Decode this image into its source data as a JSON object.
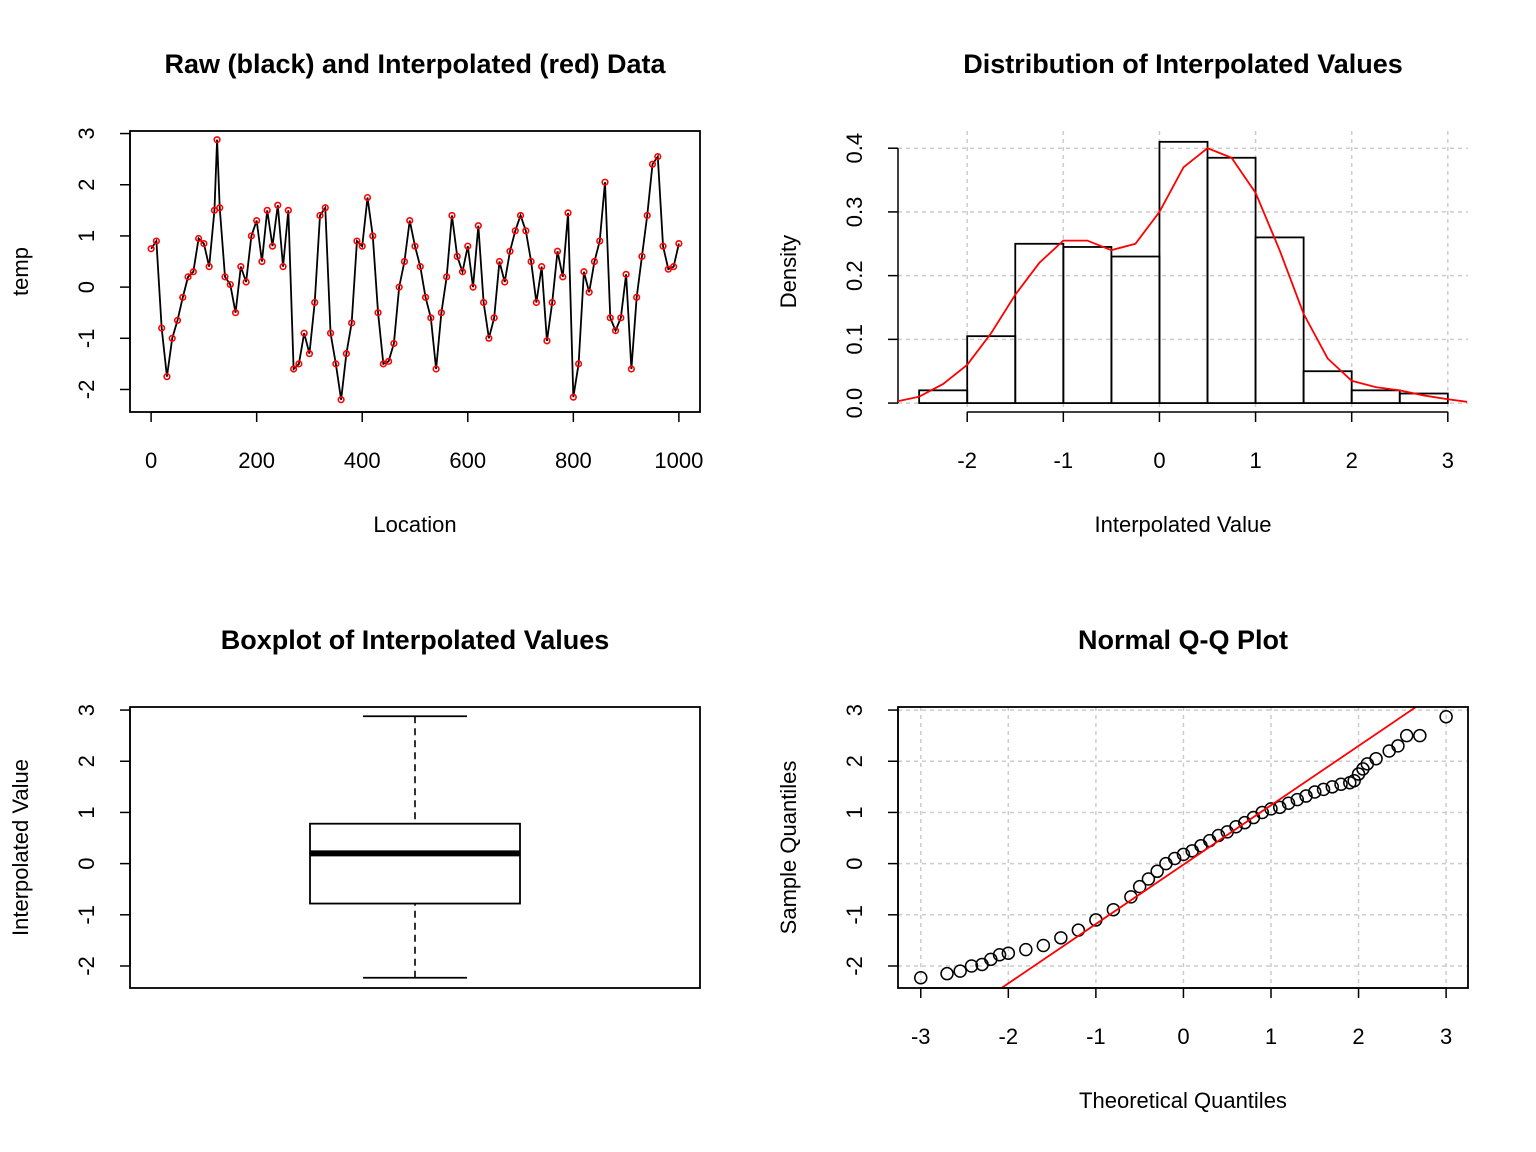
{
  "chart_data": [
    {
      "type": "line",
      "title": "Raw (black) and Interpolated (red) Data",
      "xlabel": "Location",
      "ylabel": "temp",
      "x": [
        0,
        10,
        20,
        30,
        40,
        50,
        60,
        70,
        80,
        90,
        100,
        110,
        120,
        125,
        130,
        140,
        150,
        160,
        170,
        180,
        190,
        200,
        210,
        220,
        230,
        240,
        250,
        260,
        270,
        280,
        290,
        300,
        310,
        320,
        330,
        340,
        350,
        360,
        370,
        380,
        390,
        400,
        410,
        420,
        430,
        440,
        450,
        460,
        470,
        480,
        490,
        500,
        510,
        520,
        530,
        540,
        550,
        560,
        570,
        580,
        590,
        600,
        610,
        620,
        630,
        640,
        650,
        660,
        670,
        680,
        690,
        700,
        710,
        720,
        730,
        740,
        750,
        760,
        770,
        780,
        790,
        800,
        810,
        820,
        830,
        840,
        850,
        860,
        870,
        880,
        890,
        900,
        910,
        920,
        930,
        940,
        950,
        960,
        970,
        980,
        990,
        1000
      ],
      "values": [
        0.75,
        0.9,
        -0.8,
        -1.75,
        -1.0,
        -0.65,
        -0.2,
        0.2,
        0.3,
        0.95,
        0.85,
        0.4,
        1.5,
        2.88,
        1.55,
        0.2,
        0.05,
        -0.5,
        0.4,
        0.1,
        1.0,
        1.3,
        0.5,
        1.5,
        0.8,
        1.6,
        0.4,
        1.5,
        -1.6,
        -1.5,
        -0.9,
        -1.3,
        -0.3,
        1.4,
        1.55,
        -0.9,
        -1.5,
        -2.2,
        -1.3,
        -0.7,
        0.9,
        0.8,
        1.75,
        1.0,
        -0.5,
        -1.5,
        -1.45,
        -1.1,
        0.0,
        0.5,
        1.3,
        0.8,
        0.4,
        -0.2,
        -0.6,
        -1.6,
        -0.5,
        0.2,
        1.4,
        0.6,
        0.3,
        0.8,
        0.0,
        1.2,
        -0.3,
        -1.0,
        -0.6,
        0.5,
        0.1,
        0.7,
        1.1,
        1.4,
        1.1,
        0.5,
        -0.3,
        0.4,
        -1.05,
        -0.3,
        0.7,
        0.2,
        1.45,
        -2.15,
        -1.5,
        0.3,
        -0.1,
        0.5,
        0.9,
        2.05,
        -0.6,
        -0.85,
        -0.6,
        0.25,
        -1.6,
        -0.2,
        0.6,
        1.4,
        2.4,
        2.55,
        0.8,
        0.35,
        0.4,
        0.85
      ],
      "line_color": "#000000",
      "marker_color": "#ff0000",
      "xlim": [
        -40,
        1040
      ],
      "ylim": [
        -2.44,
        3.05
      ],
      "xticks": [
        0,
        200,
        400,
        600,
        800,
        1000
      ],
      "yticks": [
        -2,
        -1,
        0,
        1,
        2,
        3
      ],
      "box": true,
      "grid": false
    },
    {
      "type": "histogram",
      "title": "Distribution of Interpolated Values",
      "xlabel": "Interpolated Value",
      "ylabel": "Density",
      "bins": [
        -2.5,
        -2,
        -1.5,
        -1,
        -0.5,
        0,
        0.5,
        1,
        1.5,
        2,
        2.5,
        3
      ],
      "values": [
        0.02,
        0.105,
        0.25,
        0.245,
        0.23,
        0.41,
        0.385,
        0.26,
        0.05,
        0.02,
        0.015
      ],
      "color": "#000000",
      "density": {
        "color": "#ff0000",
        "x": [
          -2.75,
          -2.5,
          -2.25,
          -2,
          -1.75,
          -1.5,
          -1.25,
          -1,
          -0.75,
          -0.5,
          -0.25,
          0,
          0.25,
          0.5,
          0.75,
          1,
          1.25,
          1.5,
          1.75,
          2,
          2.25,
          2.5,
          2.75,
          3,
          3.2
        ],
        "values": [
          0.002,
          0.01,
          0.03,
          0.06,
          0.11,
          0.17,
          0.22,
          0.255,
          0.255,
          0.24,
          0.25,
          0.3,
          0.37,
          0.4,
          0.385,
          0.33,
          0.24,
          0.14,
          0.07,
          0.035,
          0.025,
          0.02,
          0.012,
          0.006,
          0.002
        ]
      },
      "xlim": [
        -2.72,
        3.21
      ],
      "ylim": [
        -0.014,
        0.427
      ],
      "xticks": [
        -2,
        -1,
        0,
        1,
        2,
        3
      ],
      "yticks": [
        {
          "value": 0,
          "label": "0.0"
        },
        0.1,
        0.2,
        0.3,
        0.4
      ],
      "box": false,
      "grid": true
    },
    {
      "type": "box",
      "title": "Boxplot of Interpolated Values",
      "ylabel": "Interpolated Value",
      "min": -2.23,
      "q1": -0.78,
      "median": 0.2,
      "q3": 0.78,
      "max": 2.88,
      "color": "#000000",
      "ylim": [
        -2.43,
        3.06
      ],
      "yticks": [
        -2,
        -1,
        0,
        1,
        2,
        3
      ],
      "box": true,
      "grid": false
    },
    {
      "type": "scatter",
      "title": "Normal Q-Q Plot",
      "xlabel": "Theoretical Quantiles",
      "ylabel": "Sample Quantiles",
      "x": [
        -3,
        -2.7,
        -2.55,
        -2.42,
        -2.3,
        -2.2,
        -2.1,
        -2,
        -1.8,
        -1.6,
        -1.4,
        -1.2,
        -1,
        -0.8,
        -0.6,
        -0.5,
        -0.4,
        -0.3,
        -0.2,
        -0.1,
        0,
        0.1,
        0.2,
        0.3,
        0.4,
        0.5,
        0.6,
        0.7,
        0.8,
        0.9,
        1,
        1.1,
        1.2,
        1.3,
        1.4,
        1.5,
        1.6,
        1.7,
        1.8,
        1.9,
        1.95,
        2,
        2.05,
        2.1,
        2.2,
        2.35,
        2.45,
        2.55,
        2.7,
        3
      ],
      "values": [
        -2.23,
        -2.15,
        -2.1,
        -2,
        -1.97,
        -1.87,
        -1.78,
        -1.75,
        -1.68,
        -1.6,
        -1.45,
        -1.3,
        -1.1,
        -0.9,
        -0.65,
        -0.45,
        -0.3,
        -0.15,
        0,
        0.1,
        0.18,
        0.25,
        0.35,
        0.45,
        0.55,
        0.62,
        0.72,
        0.8,
        0.9,
        1,
        1.07,
        1.1,
        1.18,
        1.25,
        1.32,
        1.4,
        1.45,
        1.5,
        1.55,
        1.58,
        1.62,
        1.75,
        1.85,
        1.95,
        2.05,
        2.2,
        2.3,
        2.5,
        2.5,
        2.87
      ],
      "color": "#000000",
      "line": {
        "color": "#ff0000",
        "intercept": -0.02,
        "slope": 1.16
      },
      "xlim": [
        -3.26,
        3.25
      ],
      "ylim": [
        -2.43,
        3.06
      ],
      "xticks": [
        -3,
        -2,
        -1,
        0,
        1,
        2,
        3
      ],
      "yticks": [
        -2,
        -1,
        0,
        1,
        2,
        3
      ],
      "box": true,
      "grid": true
    }
  ]
}
